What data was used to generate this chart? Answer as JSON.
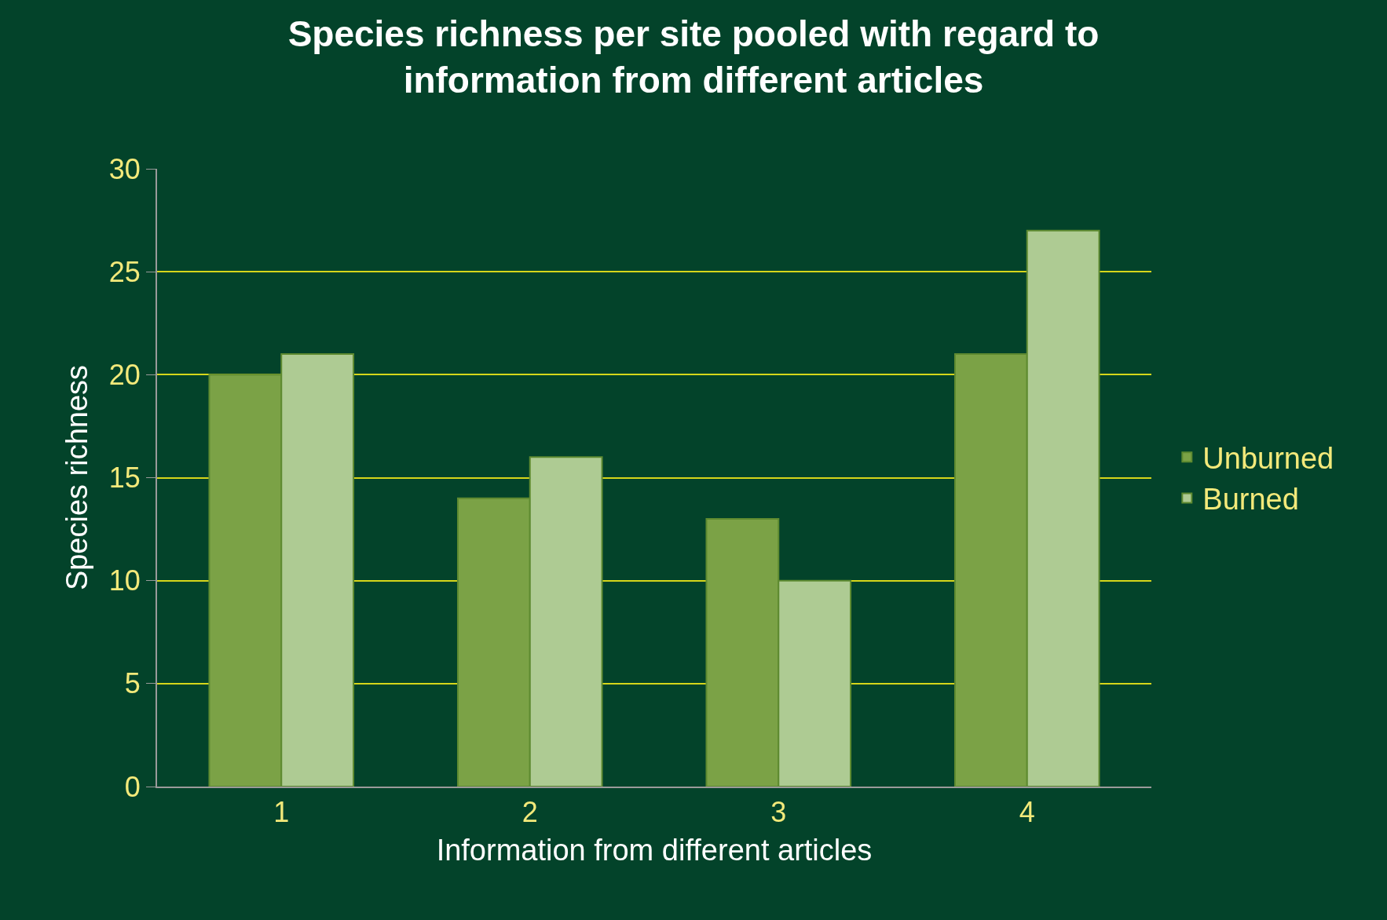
{
  "chart_data": {
    "type": "bar",
    "title": "Species richness per site pooled with regard to information from different articles",
    "xlabel": "Information from different articles",
    "ylabel": "Species richness",
    "categories": [
      "1",
      "2",
      "3",
      "4"
    ],
    "series": [
      {
        "name": "Unburned",
        "color": "#7ba246",
        "values": [
          20,
          14,
          13,
          21
        ]
      },
      {
        "name": "Burned",
        "color": "#aecb93",
        "values": [
          21,
          16,
          10,
          27
        ]
      }
    ],
    "ylim": [
      0,
      30
    ],
    "yticks": [
      0,
      5,
      10,
      15,
      20,
      25,
      30
    ],
    "grid": "y",
    "legend": "right"
  }
}
